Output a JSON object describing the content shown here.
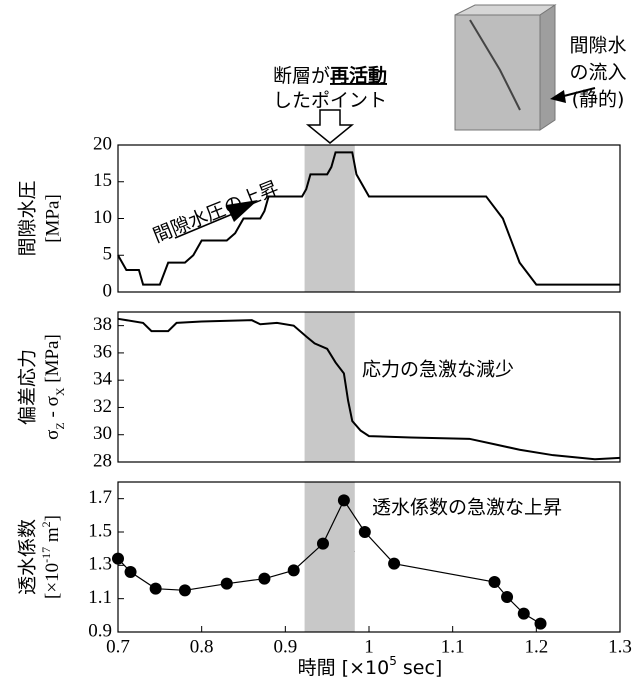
{
  "chart_data": [
    {
      "type": "line",
      "color": "#000000",
      "xlim": [
        0.7,
        1.3
      ],
      "ylim": [
        0,
        20
      ],
      "yticks": [
        0,
        5,
        10,
        15,
        20
      ],
      "span": [
        0.923,
        0.983
      ],
      "ylabel": "間隙水圧",
      "yunit": "[MPa]",
      "annotation": "間隙水圧の上昇",
      "headline": [
        "断層が",
        "再活動",
        "したポイント"
      ],
      "image_label": [
        "間隙水",
        "の流入",
        "(静的)"
      ],
      "x": [
        0.7,
        0.71,
        0.725,
        0.73,
        0.75,
        0.76,
        0.78,
        0.79,
        0.8,
        0.83,
        0.84,
        0.85,
        0.87,
        0.875,
        0.88,
        0.92,
        0.925,
        0.93,
        0.95,
        0.955,
        0.96,
        0.98,
        0.985,
        0.99,
        1.0,
        1.14,
        1.16,
        1.17,
        1.18,
        1.2,
        1.3
      ],
      "values": [
        5,
        3,
        3,
        1,
        1,
        4,
        4,
        5,
        7,
        7,
        8,
        10,
        10,
        11,
        13,
        13,
        14,
        16,
        16,
        17,
        19,
        19,
        16,
        15,
        13,
        13,
        10,
        7,
        4,
        1,
        1
      ]
    },
    {
      "type": "line",
      "color": "#000000",
      "xlim": [
        0.7,
        1.3
      ],
      "ylim": [
        28,
        39
      ],
      "yticks": [
        28,
        30,
        32,
        34,
        36,
        38
      ],
      "span": [
        0.923,
        0.983
      ],
      "ylabel": "偏差応力",
      "yunit": [
        "σ",
        "Z",
        " - σ",
        "X",
        " [MPa]"
      ],
      "annotation": "応力の急激な減少",
      "x": [
        0.7,
        0.73,
        0.74,
        0.76,
        0.77,
        0.8,
        0.86,
        0.87,
        0.89,
        0.91,
        0.925,
        0.935,
        0.95,
        0.96,
        0.97,
        0.975,
        0.98,
        0.99,
        1.0,
        1.05,
        1.12,
        1.15,
        1.18,
        1.22,
        1.27,
        1.3
      ],
      "values": [
        38.5,
        38.2,
        37.6,
        37.6,
        38.2,
        38.3,
        38.4,
        38.1,
        38.2,
        38.0,
        37.2,
        36.7,
        36.3,
        35.3,
        34.5,
        32.5,
        31.0,
        30.3,
        29.9,
        29.8,
        29.7,
        29.3,
        28.9,
        28.5,
        28.2,
        28.3
      ]
    },
    {
      "type": "line",
      "markers": true,
      "color": "#000000",
      "xlim": [
        0.7,
        1.3
      ],
      "ylim": [
        0.9,
        1.8
      ],
      "yticks": [
        0.9,
        1.1,
        1.3,
        1.5,
        1.7
      ],
      "span": [
        0.923,
        0.983
      ],
      "xticks": [
        0.7,
        0.8,
        0.9,
        1,
        1.1,
        1.2,
        1.3
      ],
      "ylabel": "透水係数",
      "yunit": [
        "[×10",
        "-17",
        " m",
        "2",
        "]"
      ],
      "xlabel": [
        "時間 [×10",
        "5",
        " sec]"
      ],
      "annotation": "透水係数の急激な上昇",
      "x": [
        0.7,
        0.715,
        0.745,
        0.78,
        0.83,
        0.875,
        0.91,
        0.945,
        0.97,
        0.995,
        1.03,
        1.15,
        1.165,
        1.185,
        1.205
      ],
      "values": [
        1.34,
        1.26,
        1.16,
        1.15,
        1.19,
        1.22,
        1.27,
        1.43,
        1.69,
        1.5,
        1.31,
        1.2,
        1.11,
        1.01,
        0.95
      ]
    }
  ]
}
